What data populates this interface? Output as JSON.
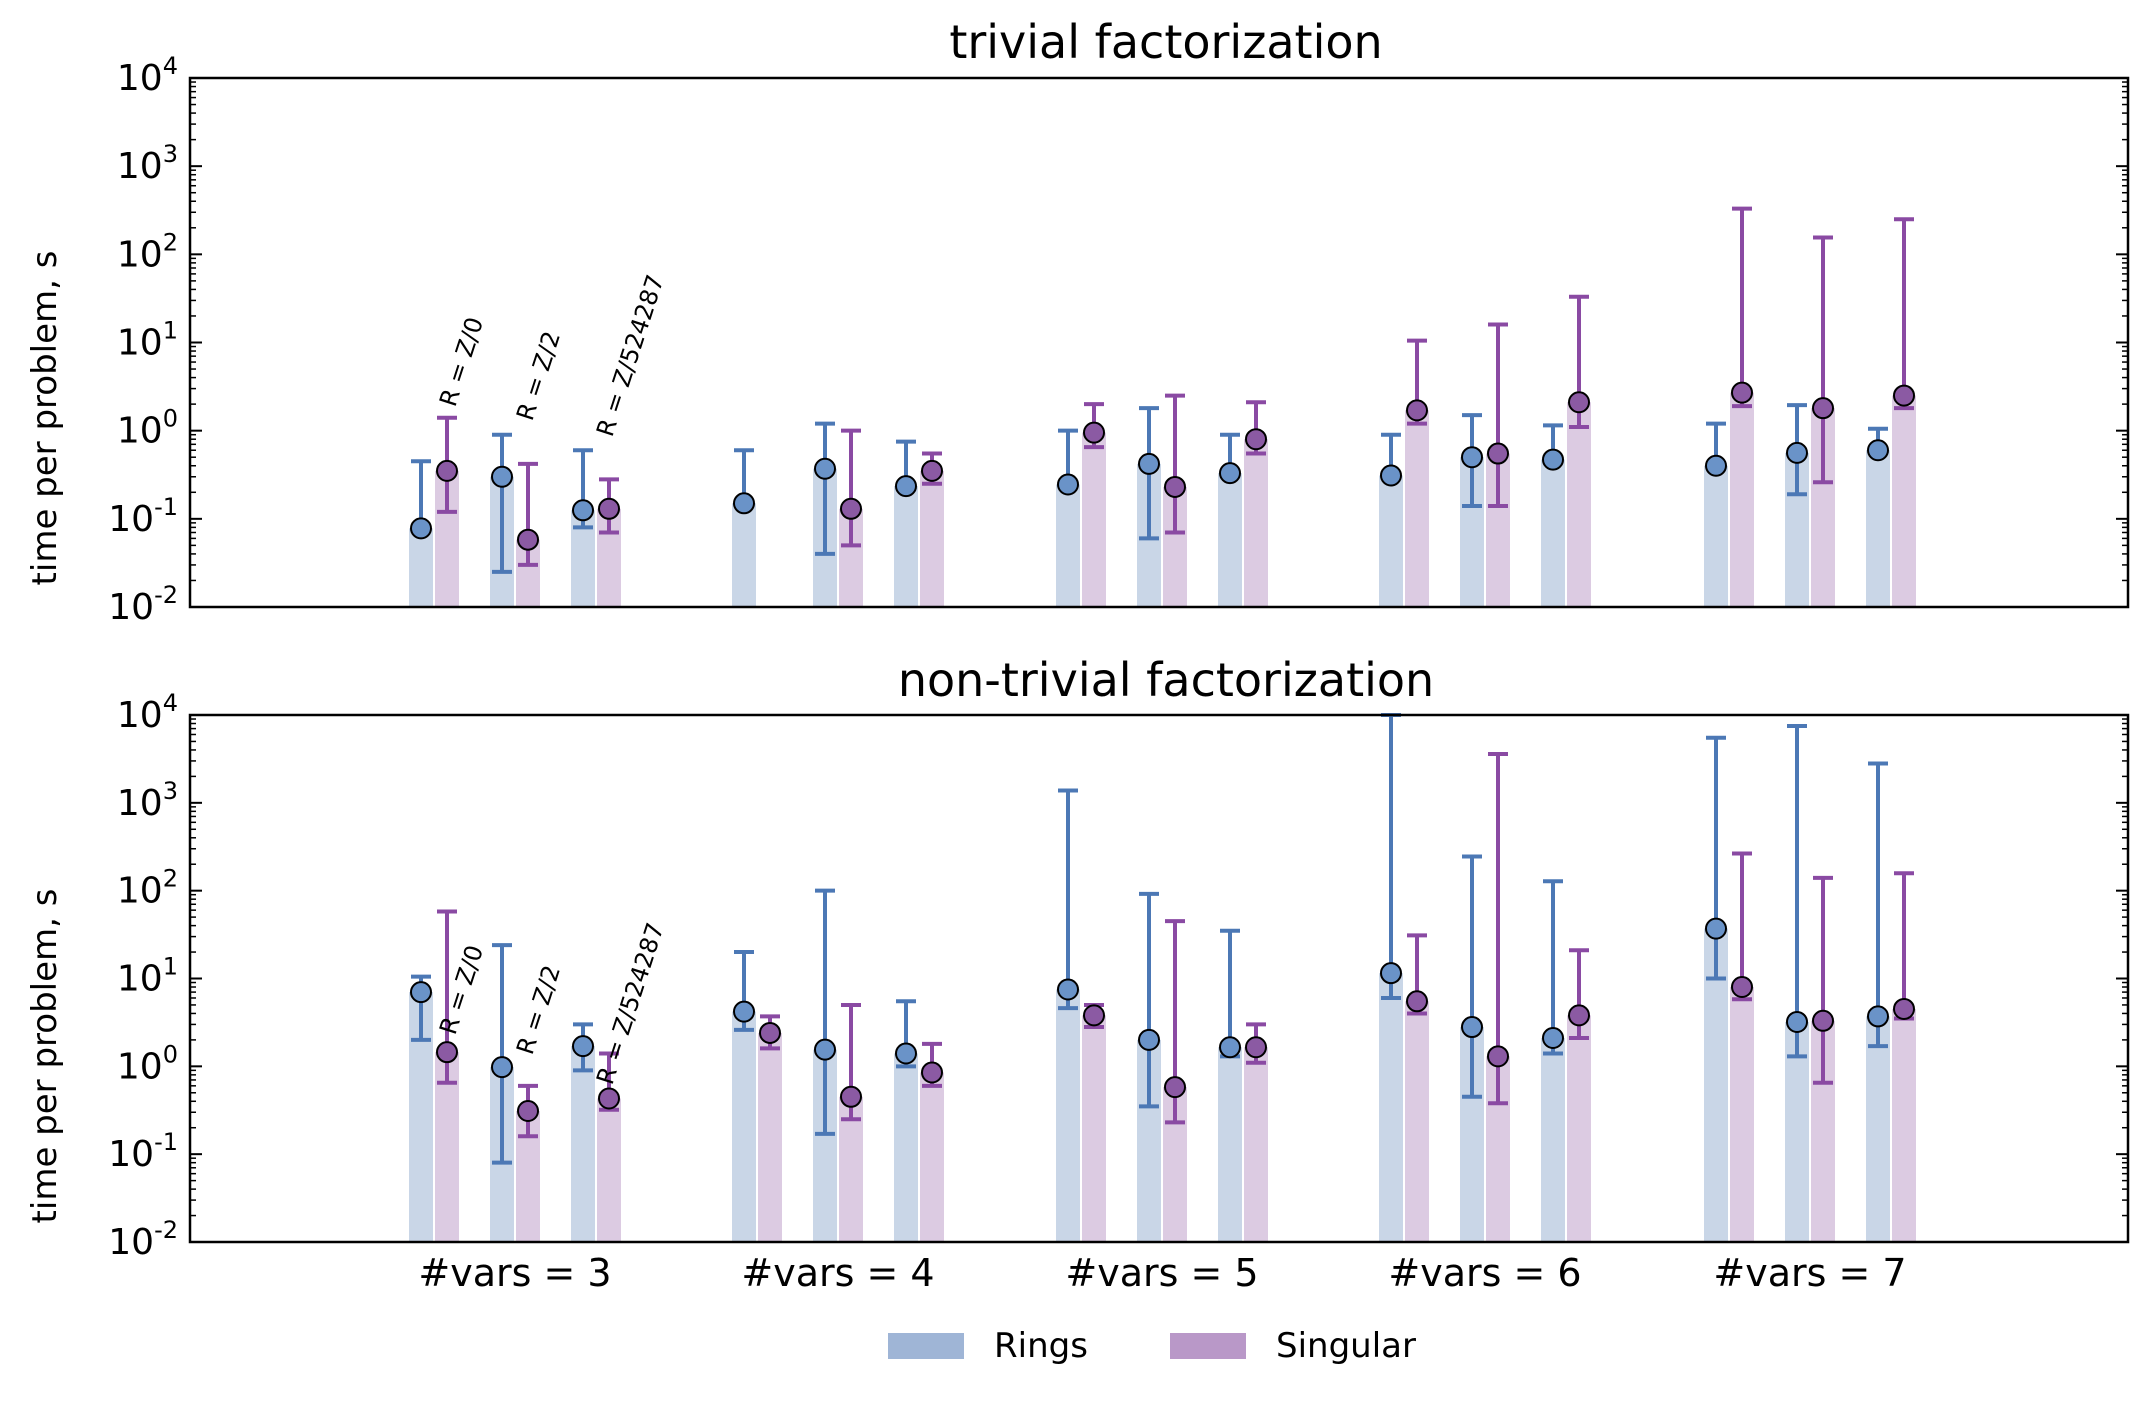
{
  "legend": {
    "position": "bottom-center",
    "entries": [
      {
        "name": "Rings",
        "color": "#9fb5d6"
      },
      {
        "name": "Singular",
        "color": "#b998c8"
      }
    ]
  },
  "colors": {
    "rings_bar": "#c9d6e7",
    "rings_line": "#4c78b5",
    "rings_marker": "#6a93c8",
    "singular_bar": "#dccbe2",
    "singular_line": "#8a4aa3",
    "singular_marker": "#8b5aa3"
  },
  "chart_data": [
    {
      "type": "bar",
      "title": "trivial factorization",
      "ylabel": "time per problem, s",
      "yscale": "log",
      "ylim": [
        0.01,
        10000
      ],
      "yticks": [
        {
          "value": 0.01,
          "base": "10",
          "exp": "-2"
        },
        {
          "value": 0.1,
          "base": "10",
          "exp": "-1"
        },
        {
          "value": 1,
          "base": "10",
          "exp": "0"
        },
        {
          "value": 10,
          "base": "10",
          "exp": "1"
        },
        {
          "value": 100,
          "base": "10",
          "exp": "2"
        },
        {
          "value": 1000,
          "base": "10",
          "exp": "3"
        },
        {
          "value": 10000,
          "base": "10",
          "exp": "4"
        }
      ],
      "ring_annotations": [
        "R = Z/0",
        "R = Z/2",
        "R = Z/524287"
      ],
      "categories": [
        "#vars = 3",
        "#vars = 4",
        "#vars = 5",
        "#vars = 6",
        "#vars = 7"
      ],
      "series": [
        {
          "name": "Rings",
          "groups": [
            [
              {
                "v": 0.078,
                "lo": 0.078,
                "hi": 0.45
              },
              {
                "v": 0.3,
                "lo": 0.025,
                "hi": 0.9
              },
              {
                "v": 0.125,
                "lo": 0.08,
                "hi": 0.6
              }
            ],
            [
              {
                "v": 0.15,
                "lo": 0.15,
                "hi": 0.6
              },
              {
                "v": 0.37,
                "lo": 0.04,
                "hi": 1.2
              },
              {
                "v": 0.235,
                "lo": 0.235,
                "hi": 0.75
              }
            ],
            [
              {
                "v": 0.245,
                "lo": 0.245,
                "hi": 1.0
              },
              {
                "v": 0.42,
                "lo": 0.06,
                "hi": 1.8
              },
              {
                "v": 0.33,
                "lo": 0.33,
                "hi": 0.9
              }
            ],
            [
              {
                "v": 0.31,
                "lo": 0.31,
                "hi": 0.9
              },
              {
                "v": 0.5,
                "lo": 0.14,
                "hi": 1.5
              },
              {
                "v": 0.47,
                "lo": 0.47,
                "hi": 1.15
              }
            ],
            [
              {
                "v": 0.4,
                "lo": 0.4,
                "hi": 1.2
              },
              {
                "v": 0.56,
                "lo": 0.19,
                "hi": 1.95
              },
              {
                "v": 0.6,
                "lo": 0.6,
                "hi": 1.05
              }
            ]
          ]
        },
        {
          "name": "Singular",
          "groups": [
            [
              {
                "v": 0.35,
                "lo": 0.12,
                "hi": 1.4
              },
              {
                "v": 0.058,
                "lo": 0.03,
                "hi": 0.42
              },
              {
                "v": 0.13,
                "lo": 0.07,
                "hi": 0.28
              }
            ],
            [
              {
                "v": 0.0,
                "lo": 0.0,
                "hi": 0.0,
                "empty": true
              },
              {
                "v": 0.13,
                "lo": 0.05,
                "hi": 1.0
              },
              {
                "v": 0.35,
                "lo": 0.25,
                "hi": 0.55
              }
            ],
            [
              {
                "v": 0.95,
                "lo": 0.65,
                "hi": 2.0
              },
              {
                "v": 0.23,
                "lo": 0.07,
                "hi": 2.5
              },
              {
                "v": 0.8,
                "lo": 0.55,
                "hi": 2.1
              }
            ],
            [
              {
                "v": 1.7,
                "lo": 1.2,
                "hi": 10.5
              },
              {
                "v": 0.55,
                "lo": 0.14,
                "hi": 16.0
              },
              {
                "v": 2.1,
                "lo": 1.1,
                "hi": 33.0
              }
            ],
            [
              {
                "v": 2.7,
                "lo": 1.9,
                "hi": 330
              },
              {
                "v": 1.8,
                "lo": 0.26,
                "hi": 155
              },
              {
                "v": 2.5,
                "lo": 1.8,
                "hi": 250
              }
            ]
          ]
        }
      ]
    },
    {
      "type": "bar",
      "title": "non-trivial factorization",
      "ylabel": "time per problem, s",
      "yscale": "log",
      "ylim": [
        0.01,
        10000
      ],
      "yticks": [
        {
          "value": 0.01,
          "base": "10",
          "exp": "-2"
        },
        {
          "value": 0.1,
          "base": "10",
          "exp": "-1"
        },
        {
          "value": 1,
          "base": "10",
          "exp": "0"
        },
        {
          "value": 10,
          "base": "10",
          "exp": "1"
        },
        {
          "value": 100,
          "base": "10",
          "exp": "2"
        },
        {
          "value": 1000,
          "base": "10",
          "exp": "3"
        },
        {
          "value": 10000,
          "base": "10",
          "exp": "4"
        }
      ],
      "ring_annotations": [
        "R = Z/0",
        "R = Z/2",
        "R = Z/524287"
      ],
      "categories": [
        "#vars = 3",
        "#vars = 4",
        "#vars = 5",
        "#vars = 6",
        "#vars = 7"
      ],
      "series": [
        {
          "name": "Rings",
          "groups": [
            [
              {
                "v": 7.0,
                "lo": 2.0,
                "hi": 10.5
              },
              {
                "v": 0.98,
                "lo": 0.08,
                "hi": 24.0
              },
              {
                "v": 1.7,
                "lo": 0.9,
                "hi": 3.0
              }
            ],
            [
              {
                "v": 4.2,
                "lo": 2.6,
                "hi": 20.0
              },
              {
                "v": 1.55,
                "lo": 0.17,
                "hi": 100
              },
              {
                "v": 1.4,
                "lo": 1.0,
                "hi": 5.5
              }
            ],
            [
              {
                "v": 7.5,
                "lo": 4.6,
                "hi": 1380
              },
              {
                "v": 2.0,
                "lo": 0.35,
                "hi": 92.0
              },
              {
                "v": 1.65,
                "lo": 1.3,
                "hi": 35.0
              }
            ],
            [
              {
                "v": 11.5,
                "lo": 6.0,
                "hi": 10000
              },
              {
                "v": 2.8,
                "lo": 0.45,
                "hi": 245
              },
              {
                "v": 2.1,
                "lo": 1.4,
                "hi": 128
              }
            ],
            [
              {
                "v": 37.0,
                "lo": 10.0,
                "hi": 5500
              },
              {
                "v": 3.2,
                "lo": 1.3,
                "hi": 7500
              },
              {
                "v": 3.7,
                "lo": 1.7,
                "hi": 2800
              }
            ]
          ]
        },
        {
          "name": "Singular",
          "groups": [
            [
              {
                "v": 1.45,
                "lo": 0.65,
                "hi": 58.0
              },
              {
                "v": 0.31,
                "lo": 0.16,
                "hi": 0.6
              },
              {
                "v": 0.43,
                "lo": 0.32,
                "hi": 1.4
              }
            ],
            [
              {
                "v": 2.4,
                "lo": 1.6,
                "hi": 3.7
              },
              {
                "v": 0.45,
                "lo": 0.25,
                "hi": 5.0
              },
              {
                "v": 0.85,
                "lo": 0.6,
                "hi": 1.8
              }
            ],
            [
              {
                "v": 3.8,
                "lo": 2.8,
                "hi": 5.0
              },
              {
                "v": 0.58,
                "lo": 0.23,
                "hi": 45.0
              },
              {
                "v": 1.65,
                "lo": 1.1,
                "hi": 3.0
              }
            ],
            [
              {
                "v": 5.5,
                "lo": 4.0,
                "hi": 31.0
              },
              {
                "v": 1.3,
                "lo": 0.38,
                "hi": 3600
              },
              {
                "v": 3.8,
                "lo": 2.1,
                "hi": 21.0
              }
            ],
            [
              {
                "v": 8.0,
                "lo": 5.8,
                "hi": 265
              },
              {
                "v": 3.3,
                "lo": 0.65,
                "hi": 140
              },
              {
                "v": 4.5,
                "lo": 3.5,
                "hi": 158
              }
            ]
          ]
        }
      ]
    }
  ]
}
